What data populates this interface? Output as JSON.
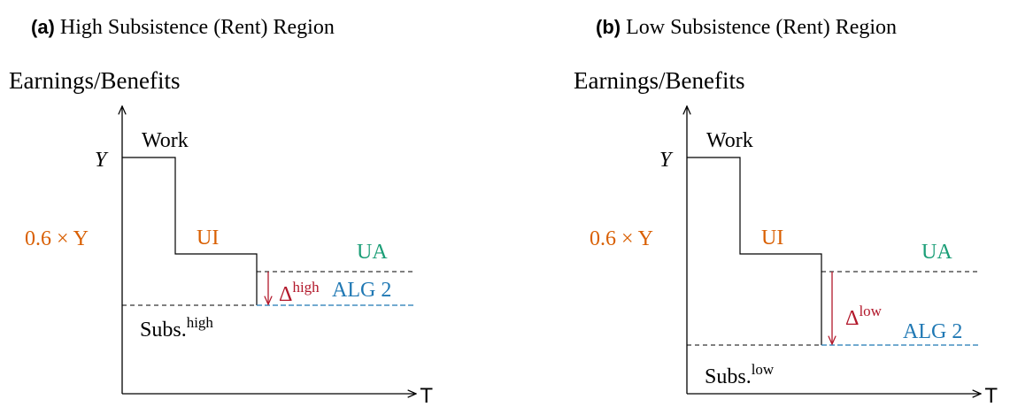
{
  "panels": [
    {
      "caption_label": "(a)",
      "caption": "High Subsistence (Rent) Region",
      "y_axis_label": "Earnings/Benefits",
      "x_axis_label": "T",
      "y_label": "Y",
      "ui_level_label": "0.6 × Y",
      "work_label": "Work",
      "ui_label": "UI",
      "ua_label": "UA",
      "alg2_label": "ALG 2",
      "delta_label": "Δ",
      "delta_superscript": "high",
      "subs_label": "Subs.",
      "subs_superscript": "high"
    },
    {
      "caption_label": "(b)",
      "caption": "Low Subsistence (Rent) Region",
      "y_axis_label": "Earnings/Benefits",
      "x_axis_label": "T",
      "y_label": "Y",
      "ui_level_label": "0.6 × Y",
      "work_label": "Work",
      "ui_label": "UI",
      "ua_label": "UA",
      "alg2_label": "ALG 2",
      "delta_label": "Δ",
      "delta_superscript": "low",
      "subs_label": "Subs.",
      "subs_superscript": "low"
    }
  ]
}
